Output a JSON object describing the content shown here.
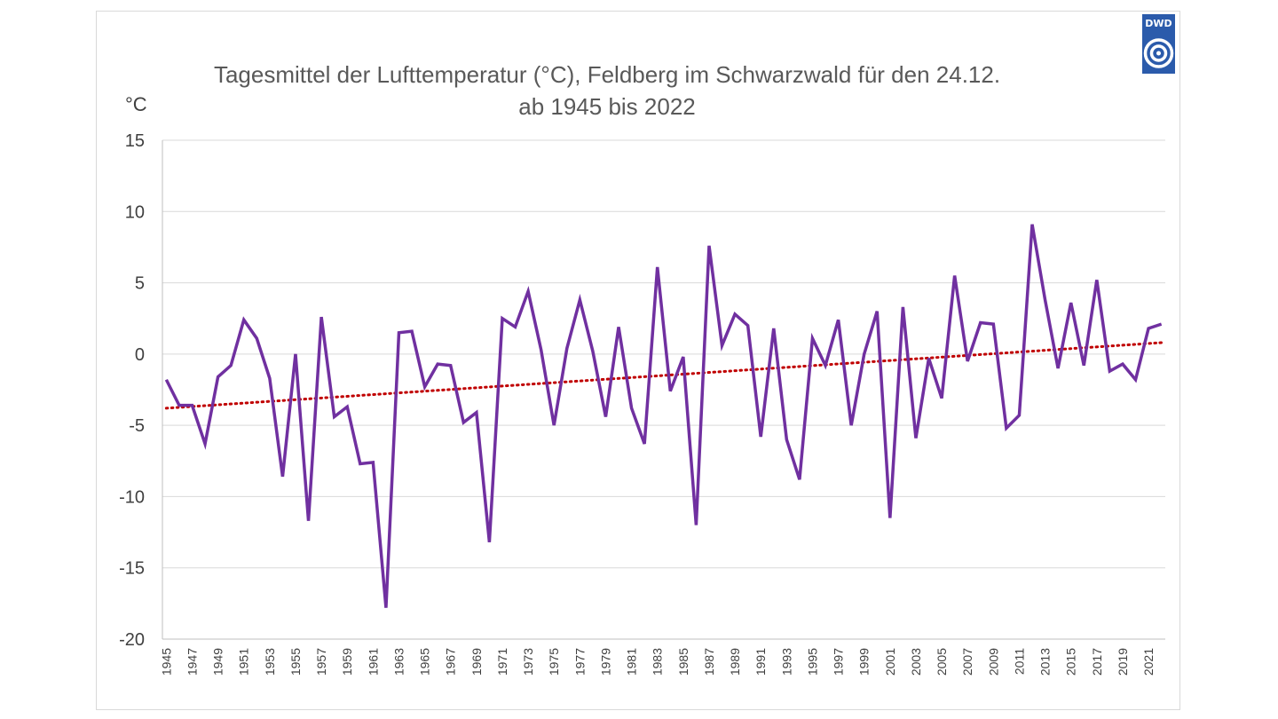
{
  "logo": {
    "text": "DWD",
    "color": "#2b5bab"
  },
  "colors": {
    "series": "#7030a0",
    "trend": "#c00000"
  },
  "chart_data": {
    "type": "line",
    "title": "Tagesmittel der Lufttemperatur (°C), Feldberg im Schwarzwald für den 24.12.",
    "subtitle": "ab 1945 bis 2022",
    "ylabel": "°C",
    "ylim": [
      -20,
      15
    ],
    "yticks": [
      15,
      10,
      5,
      0,
      -5,
      -10,
      -15,
      -20
    ],
    "ytick_labels": [
      "15",
      "10",
      "5",
      "0",
      "-5",
      "-10",
      "-15",
      "-20"
    ],
    "xtick_labels": [
      "1945",
      "1947",
      "1949",
      "1951",
      "1953",
      "1955",
      "1957",
      "1959",
      "1961",
      "1963",
      "1965",
      "1967",
      "1969",
      "1971",
      "1973",
      "1975",
      "1977",
      "1979",
      "1981",
      "1983",
      "1985",
      "1987",
      "1989",
      "1991",
      "1993",
      "1995",
      "1997",
      "1999",
      "2001",
      "2003",
      "2005",
      "2007",
      "2009",
      "2011",
      "2013",
      "2015",
      "2017",
      "2019",
      "2021"
    ],
    "grid": true,
    "legend": "none",
    "x": [
      1945,
      1946,
      1947,
      1948,
      1949,
      1950,
      1951,
      1952,
      1953,
      1954,
      1955,
      1956,
      1957,
      1958,
      1959,
      1960,
      1961,
      1962,
      1963,
      1964,
      1965,
      1966,
      1967,
      1968,
      1969,
      1970,
      1971,
      1972,
      1973,
      1974,
      1975,
      1976,
      1977,
      1978,
      1979,
      1980,
      1981,
      1982,
      1983,
      1984,
      1985,
      1986,
      1987,
      1988,
      1989,
      1990,
      1991,
      1992,
      1993,
      1994,
      1995,
      1996,
      1997,
      1998,
      1999,
      2000,
      2001,
      2002,
      2003,
      2004,
      2005,
      2006,
      2007,
      2008,
      2009,
      2010,
      2011,
      2012,
      2013,
      2014,
      2015,
      2016,
      2017,
      2018,
      2019,
      2020,
      2021,
      2022
    ],
    "series": [
      {
        "values": [
          -1.8,
          -3.6,
          -3.6,
          -6.3,
          -1.6,
          -0.8,
          2.4,
          1.1,
          -1.7,
          -8.6,
          0.0,
          -11.7,
          2.6,
          -4.4,
          -3.7,
          -7.7,
          -7.6,
          -17.8,
          1.5,
          1.6,
          -2.3,
          -0.7,
          -0.8,
          -4.8,
          -4.1,
          -13.2,
          2.5,
          1.9,
          4.4,
          0.3,
          -5.0,
          0.4,
          3.8,
          0.2,
          -4.4,
          1.9,
          -3.8,
          -6.3,
          6.1,
          -2.6,
          -0.2,
          -12.0,
          7.6,
          0.6,
          2.8,
          2.0,
          -5.8,
          1.8,
          -6.0,
          -8.8,
          1.1,
          -0.8,
          2.4,
          -5.0,
          0.0,
          3.0,
          -11.5,
          3.3,
          -5.9,
          -0.3,
          -3.1,
          5.5,
          -0.5,
          2.2,
          2.1,
          -5.2,
          -4.3,
          9.1,
          3.8,
          -1.0,
          3.6,
          -0.8,
          5.2,
          -1.2,
          -0.7,
          -1.8,
          1.8,
          2.1
        ]
      }
    ],
    "trend": {
      "start": {
        "x": 1945,
        "y": -3.8
      },
      "end": {
        "x": 2022,
        "y": 0.8
      }
    }
  }
}
